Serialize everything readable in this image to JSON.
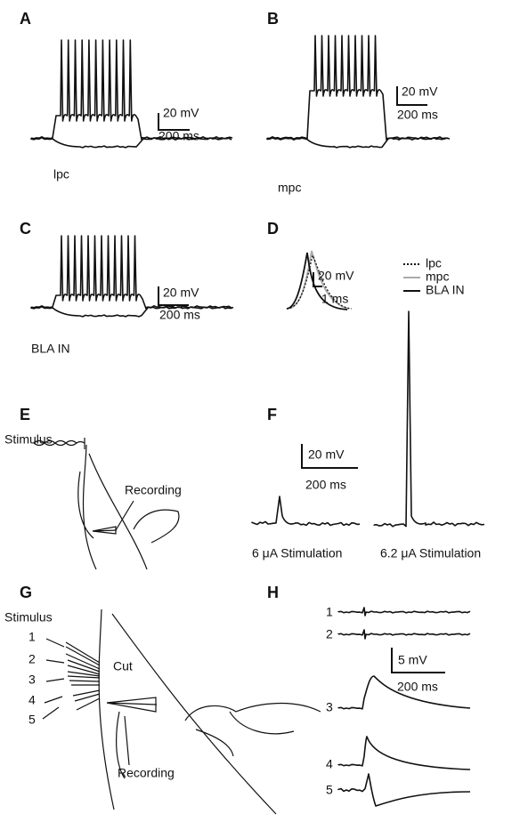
{
  "panels": {
    "A": {
      "letter": "A",
      "label": "lpc",
      "scale_y": "20 mV",
      "scale_x": "200 ms"
    },
    "B": {
      "letter": "B",
      "label": "mpc",
      "scale_y": "20 mV",
      "scale_x": "200 ms"
    },
    "C": {
      "letter": "C",
      "label": "BLA IN",
      "scale_y": "20 mV",
      "scale_x": "200 ms"
    },
    "D": {
      "letter": "D",
      "scale_y": "20 mV",
      "scale_x": "1 ms",
      "legend": [
        "lpc",
        "mpc",
        "BLA IN"
      ]
    },
    "E": {
      "letter": "E",
      "stimulus": "Stimulus",
      "recording": "Recording"
    },
    "F": {
      "letter": "F",
      "scale_y": "20 mV",
      "scale_x": "200 ms",
      "labels": [
        "6 μA Stimulation",
        "6.2 μA Stimulation"
      ]
    },
    "G": {
      "letter": "G",
      "stimulus": "Stimulus",
      "sites": [
        "1",
        "2",
        "3",
        "4",
        "5"
      ],
      "cut": "Cut",
      "recording": "Recording"
    },
    "H": {
      "letter": "H",
      "traces": [
        "1",
        "2",
        "3",
        "4",
        "5"
      ],
      "scale_y": "5 mV",
      "scale_x": "200 ms"
    }
  }
}
